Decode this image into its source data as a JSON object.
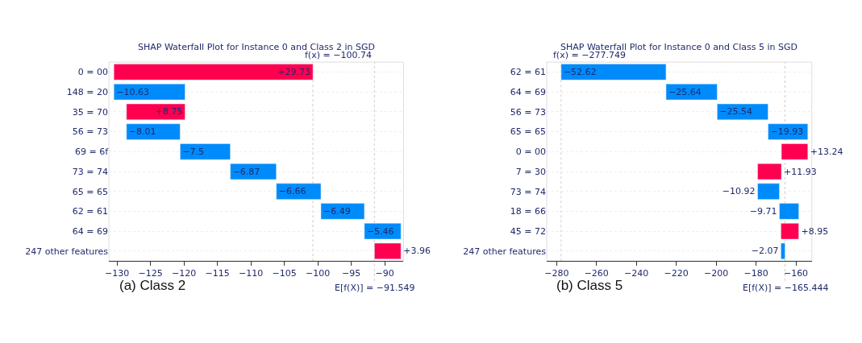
{
  "chart_data": [
    {
      "type": "bar",
      "orientation": "horizontal",
      "title": "SHAP Waterfall Plot for Instance 0 and Class 2 in SGD",
      "categories": [
        "0 = 00",
        "148 = 20",
        "35 = 70",
        "56 = 73",
        "69 = 6f",
        "73 = 74",
        "65 = 65",
        "62 = 61",
        "64 = 69",
        "247 other features"
      ],
      "values": [
        29.73,
        -10.63,
        8.75,
        -8.01,
        -7.5,
        -6.87,
        -6.66,
        -6.49,
        -5.46,
        3.96
      ],
      "base": [
        -130.459,
        -119.829,
        -128.579,
        -120.569,
        -113.069,
        -106.199,
        -99.539,
        -93.049,
        -87.589,
        -91.549
      ],
      "colors": [
        "#ff0051",
        "#008bfb",
        "#ff0051",
        "#008bfb",
        "#008bfb",
        "#008bfb",
        "#008bfb",
        "#008bfb",
        "#008bfb",
        "#ff0051"
      ],
      "value_labels": [
        "+29.73",
        "−10.63",
        "+8.75",
        "−8.01",
        "−7.5",
        "−6.87",
        "−6.66",
        "−6.49",
        "−5.46",
        "+3.96"
      ],
      "xlim": [
        -131.2,
        -87.2
      ],
      "xticks": [
        {
          "value": -130,
          "label": "−130"
        },
        {
          "value": -125,
          "label": "−125"
        },
        {
          "value": -120,
          "label": "−120"
        },
        {
          "value": -115,
          "label": "−115"
        },
        {
          "value": -110,
          "label": "−110"
        },
        {
          "value": -105,
          "label": "−105"
        },
        {
          "value": -100,
          "label": "−100"
        },
        {
          "value": -95,
          "label": "−95"
        },
        {
          "value": -90,
          "label": "−90"
        }
      ],
      "ref_lines": [
        {
          "axis": "x",
          "value": -100.74,
          "label": "f(x) = −100.74",
          "color": "#cccccc",
          "line_style": "dotted"
        },
        {
          "axis": "x",
          "value": -91.549,
          "label": "E[f(X)] = −91.549",
          "color": "#cccccc",
          "line_style": "dotted"
        }
      ],
      "grid": "y",
      "annotations": [
        "(a) Class 2"
      ]
    },
    {
      "type": "bar",
      "orientation": "horizontal",
      "title": "SHAP Waterfall Plot for Instance 0 and Class 5 in SGD",
      "categories": [
        "62 = 61",
        "64 = 69",
        "56 = 73",
        "65 = 65",
        "0 = 00",
        "7 = 30",
        "73 = 74",
        "18 = 66",
        "45 = 72",
        "247 other features"
      ],
      "values": [
        -52.62,
        -25.64,
        -25.54,
        -19.93,
        13.24,
        11.93,
        -10.92,
        -9.71,
        8.95,
        -2.07
      ],
      "base": [
        -225.134,
        -199.494,
        -173.954,
        -154.024,
        -167.264,
        -179.194,
        -168.274,
        -158.564,
        -167.514,
        -165.444
      ],
      "colors": [
        "#008bfb",
        "#008bfb",
        "#008bfb",
        "#008bfb",
        "#ff0051",
        "#ff0051",
        "#008bfb",
        "#008bfb",
        "#ff0051",
        "#008bfb"
      ],
      "value_labels": [
        "−52.62",
        "−25.64",
        "−25.54",
        "−19.93",
        "+13.24",
        "+11.93",
        "−10.92",
        "−9.71",
        "+8.95",
        "−2.07"
      ],
      "xlim": [
        -285,
        -152
      ],
      "xticks": [
        {
          "value": -280,
          "label": "−280"
        },
        {
          "value": -260,
          "label": "−260"
        },
        {
          "value": -240,
          "label": "−240"
        },
        {
          "value": -220,
          "label": "−220"
        },
        {
          "value": -200,
          "label": "−200"
        },
        {
          "value": -180,
          "label": "−180"
        },
        {
          "value": -160,
          "label": "−160"
        }
      ],
      "ref_lines": [
        {
          "axis": "x",
          "value": -277.749,
          "label": "f(x) = −277.749",
          "color": "#cccccc",
          "line_style": "dotted"
        },
        {
          "axis": "x",
          "value": -165.444,
          "label": "E[f(X)] = −165.444",
          "color": "#cccccc",
          "line_style": "dotted"
        }
      ],
      "grid": "y",
      "annotations": [
        "(b) Class 5"
      ]
    }
  ]
}
